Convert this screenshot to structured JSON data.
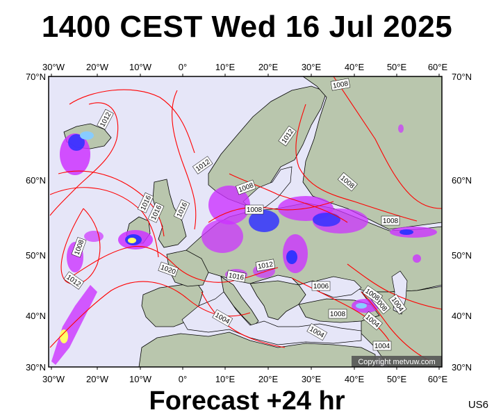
{
  "header": {
    "title": "1400 CEST Wed 16 Jul 2025"
  },
  "footer": {
    "forecast": "Forecast +24 hr",
    "model_code": "US6"
  },
  "map": {
    "copyright": "Copyright metvuw.com",
    "colors": {
      "sea": "#e6e6f8",
      "land": "#b9c6ad",
      "isobar": "#ff0000",
      "coast": "#000000"
    },
    "lon_ticks": [
      "30°W",
      "20°W",
      "10°W",
      "0°",
      "10°E",
      "20°E",
      "30°E",
      "40°E",
      "50°E",
      "60°E"
    ],
    "lat_ticks": [
      "70°N",
      "60°N",
      "50°N",
      "40°N",
      "30°N"
    ],
    "isobar_labels": [
      "1012",
      "1008",
      "1016",
      "1016",
      "1016",
      "1020",
      "1008",
      "1012",
      "1008",
      "1012",
      "1016",
      "1008",
      "1012",
      "1008",
      "1008",
      "1012",
      "1006",
      "1008",
      "1004",
      "1008",
      "1004",
      "1004",
      "1008",
      "1004",
      "1004"
    ]
  }
}
